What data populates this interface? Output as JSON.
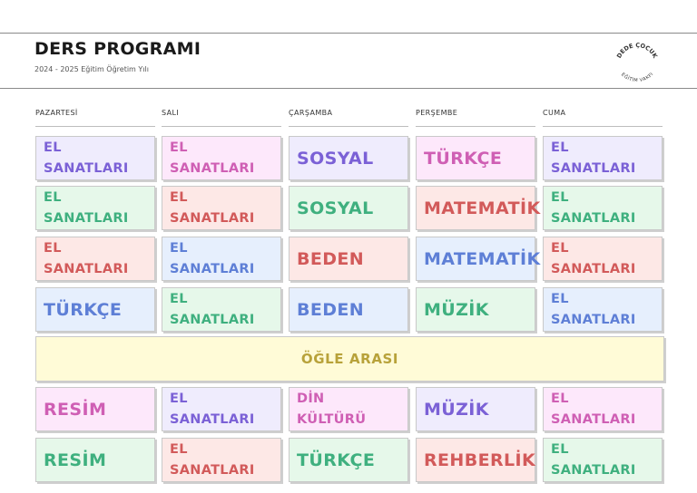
{
  "header": {
    "title": "DERS PROGRAMI",
    "subtitle": "2024 - 2025 Eğitim Öğretim Yılı",
    "logo_top": "DEDE ÇOCUK",
    "logo_bottom": "EĞİTİM VAKFI"
  },
  "days": [
    "PAZARTESİ",
    "SALI",
    "ÇARŞAMBA",
    "PERŞEMBE",
    "CUMA"
  ],
  "colors": {
    "purple_bg": "#efecfd",
    "purple_fg": "#7b61d6",
    "pink_bg": "#fde8fb",
    "pink_fg": "#cf5fb4",
    "green_bg": "#e6f8ea",
    "green_fg": "#3fb07f",
    "red_bg": "#fde8e6",
    "red_fg": "#d25a5a",
    "blue_bg": "#e6effd",
    "blue_fg": "#5e7fd6",
    "lunch_bg": "#fffbd7",
    "lunch_fg": "#b8a23a"
  },
  "morning_rows": [
    [
      {
        "l1": "EL",
        "l2": "SANATLARI",
        "color": "purple"
      },
      {
        "l1": "EL",
        "l2": "SANATLARI",
        "color": "pink"
      },
      {
        "l1": "SOSYAL",
        "color": "purple"
      },
      {
        "l1": "TÜRKÇE",
        "color": "pink"
      },
      {
        "l1": "EL",
        "l2": "SANATLARI",
        "color": "purple"
      }
    ],
    [
      {
        "l1": "EL",
        "l2": "SANATLARI",
        "color": "green"
      },
      {
        "l1": "EL",
        "l2": "SANATLARI",
        "color": "red"
      },
      {
        "l1": "SOSYAL",
        "color": "green"
      },
      {
        "l1": "MATEMATİK",
        "color": "red"
      },
      {
        "l1": "EL",
        "l2": "SANATLARI",
        "color": "green"
      }
    ],
    [
      {
        "l1": "EL",
        "l2": "SANATLARI",
        "color": "red"
      },
      {
        "l1": "EL",
        "l2": "SANATLARI",
        "color": "blue"
      },
      {
        "l1": "BEDEN",
        "color": "red"
      },
      {
        "l1": "MATEMATİK",
        "color": "blue"
      },
      {
        "l1": "EL",
        "l2": "SANATLARI",
        "color": "red"
      }
    ],
    [
      {
        "l1": "TÜRKÇE",
        "color": "blue"
      },
      {
        "l1": "EL",
        "l2": "SANATLARI",
        "color": "green"
      },
      {
        "l1": "BEDEN",
        "color": "blue"
      },
      {
        "l1": "MÜZİK",
        "color": "green"
      },
      {
        "l1": "EL",
        "l2": "SANATLARI",
        "color": "blue"
      }
    ]
  ],
  "lunch_label": "ÖĞLE ARASI",
  "afternoon_rows": [
    [
      {
        "l1": "RESİM",
        "color": "pink"
      },
      {
        "l1": "EL",
        "l2": "SANATLARI",
        "color": "purple"
      },
      {
        "l1": "DİN",
        "l2": "KÜLTÜRÜ",
        "color": "pink"
      },
      {
        "l1": "MÜZİK",
        "color": "purple"
      },
      {
        "l1": "EL",
        "l2": "SANATLARI",
        "color": "pink"
      }
    ],
    [
      {
        "l1": "RESİM",
        "color": "green"
      },
      {
        "l1": "EL",
        "l2": "SANATLARI",
        "color": "red"
      },
      {
        "l1": "TÜRKÇE",
        "color": "green"
      },
      {
        "l1": "REHBERLİK",
        "color": "red"
      },
      {
        "l1": "EL",
        "l2": "SANATLARI",
        "color": "green"
      }
    ]
  ]
}
